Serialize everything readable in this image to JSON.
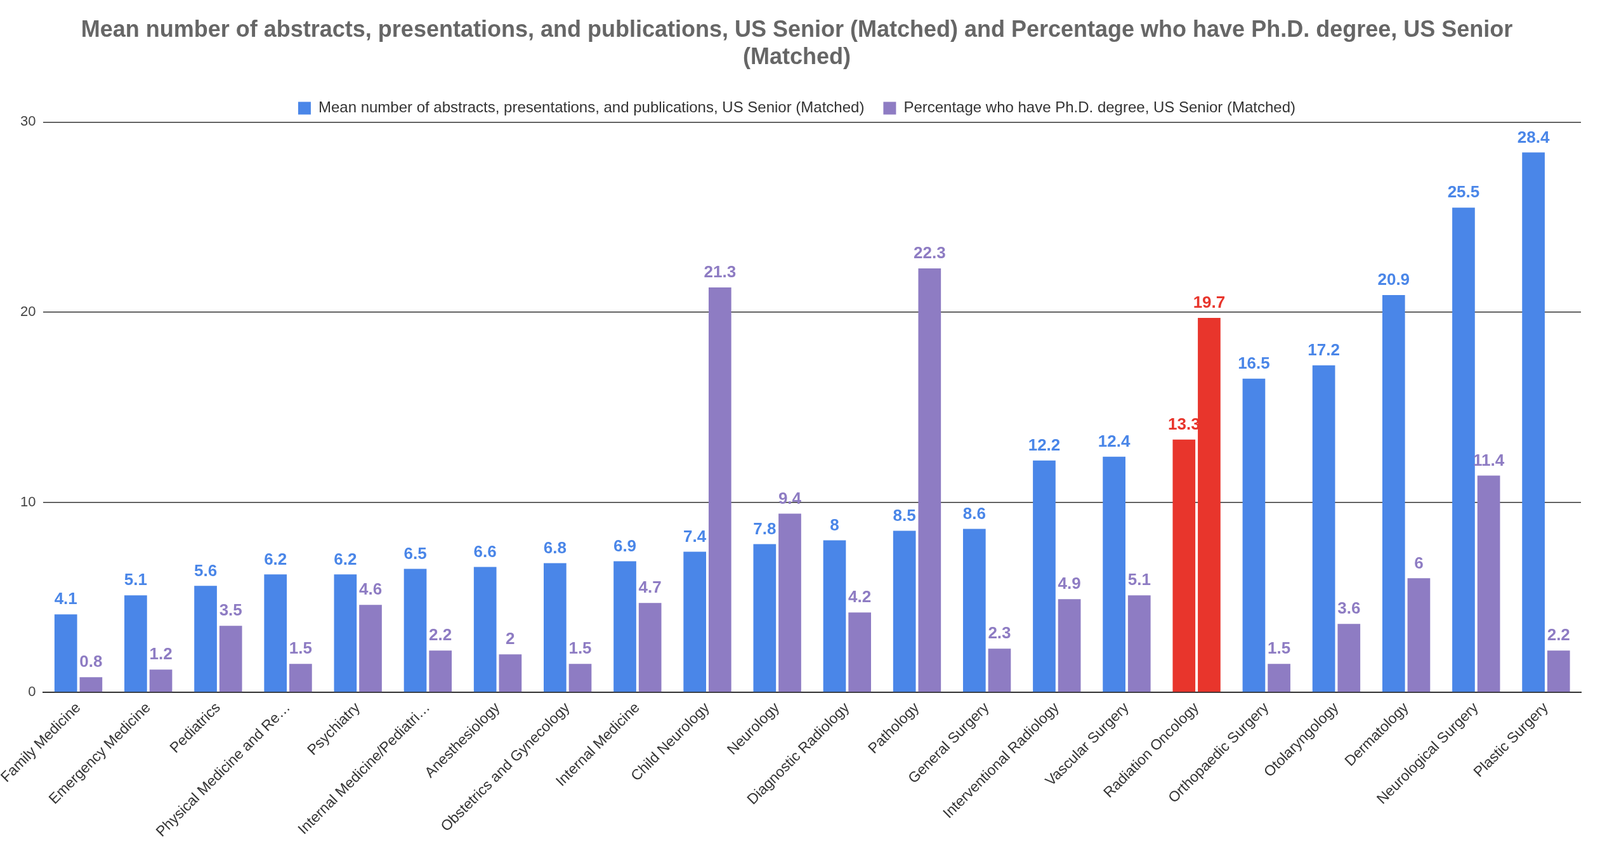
{
  "chart_data": {
    "type": "bar",
    "title": "Mean number of abstracts, presentations, and publications, US Senior (Matched) and Percentage who have Ph.D. degree, US Senior (Matched)",
    "categories": [
      "Family Medicine",
      "Emergency Medicine",
      "Pediatrics",
      "Physical Medicine and Re…",
      "Psychiatry",
      "Internal Medicine/Pediatri…",
      "Anesthesiology",
      "Obstetrics and Gynecology",
      "Internal Medicine",
      "Child Neurology",
      "Neurology",
      "Diagnostic Radiology",
      "Pathology",
      "General Surgery",
      "Interventional Radiology",
      "Vascular Surgery",
      "Radiation Oncology",
      "Orthopaedic Surgery",
      "Otolaryngology",
      "Dermatology",
      "Neurological Surgery",
      "Plastic Surgery"
    ],
    "series": [
      {
        "name": "Mean number of abstracts, presentations, and publications, US Senior (Matched)",
        "color": "#4a86e8",
        "colors": [
          "#4a86e8",
          "#4a86e8",
          "#4a86e8",
          "#4a86e8",
          "#4a86e8",
          "#4a86e8",
          "#4a86e8",
          "#4a86e8",
          "#4a86e8",
          "#4a86e8",
          "#4a86e8",
          "#4a86e8",
          "#4a86e8",
          "#4a86e8",
          "#4a86e8",
          "#4a86e8",
          "#e8352c",
          "#4a86e8",
          "#4a86e8",
          "#4a86e8",
          "#4a86e8",
          "#4a86e8"
        ],
        "values": [
          4.1,
          5.1,
          5.6,
          6.2,
          6.2,
          6.5,
          6.6,
          6.8,
          6.9,
          7.4,
          7.8,
          8,
          8.5,
          8.6,
          12.2,
          12.4,
          13.3,
          16.5,
          17.2,
          20.9,
          25.5,
          28.4
        ]
      },
      {
        "name": "Percentage who have Ph.D. degree, US Senior (Matched)",
        "color": "#8e7cc3",
        "colors": [
          "#8e7cc3",
          "#8e7cc3",
          "#8e7cc3",
          "#8e7cc3",
          "#8e7cc3",
          "#8e7cc3",
          "#8e7cc3",
          "#8e7cc3",
          "#8e7cc3",
          "#8e7cc3",
          "#8e7cc3",
          "#8e7cc3",
          "#8e7cc3",
          "#8e7cc3",
          "#8e7cc3",
          "#8e7cc3",
          "#e8352c",
          "#8e7cc3",
          "#8e7cc3",
          "#8e7cc3",
          "#8e7cc3",
          "#8e7cc3"
        ],
        "values": [
          0.8,
          1.2,
          3.5,
          1.5,
          4.6,
          2.2,
          2,
          1.5,
          4.7,
          21.3,
          9.4,
          4.2,
          22.3,
          2.3,
          4.9,
          5.1,
          19.7,
          1.5,
          3.6,
          6,
          11.4,
          2.2
        ]
      }
    ],
    "ylim": [
      0,
      30
    ],
    "yticks": [
      0,
      10,
      20,
      30
    ],
    "grid": true,
    "legend": "top",
    "data_labels": true
  }
}
